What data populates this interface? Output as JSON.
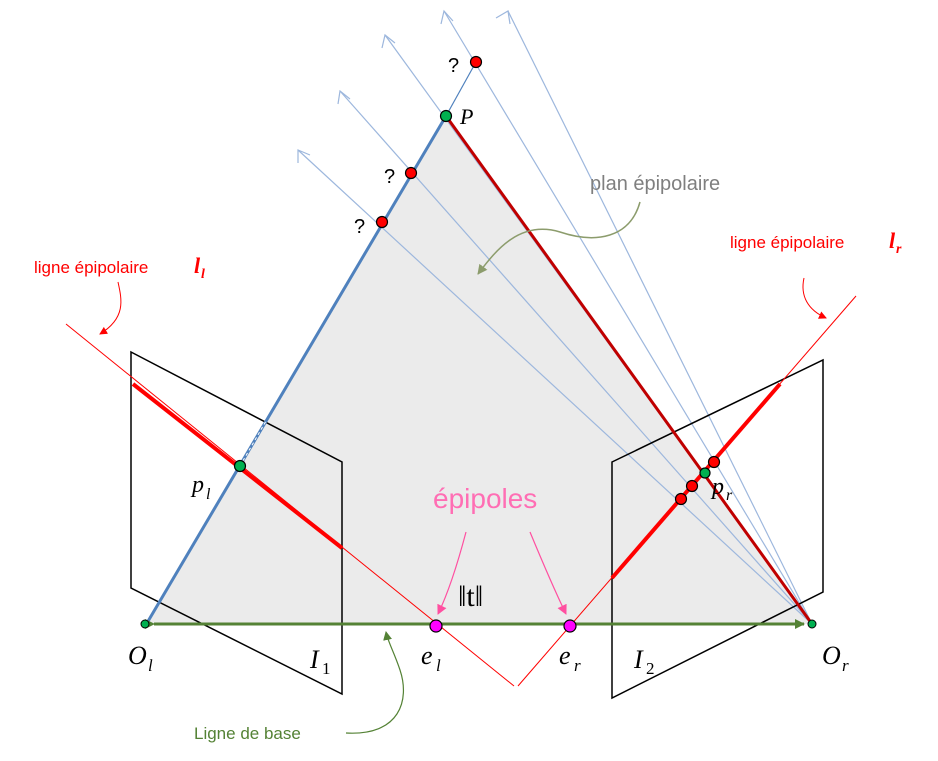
{
  "labels": {
    "P": "P",
    "q1": "?",
    "q2": "?",
    "q3": "?",
    "plan": "plan épipolaire",
    "ligne_l_text": "ligne épipolaire",
    "ligne_l_sym": "l",
    "ligne_l_sub": "l",
    "ligne_r_text": "ligne épipolaire",
    "ligne_r_sym": "l",
    "ligne_r_sub": "r",
    "pl": "p",
    "pl_sub": "l",
    "pr": "p",
    "pr_sub": "r",
    "epipoles": "épipoles",
    "t_norm": "‖t‖",
    "Ol": "O",
    "Ol_sub": "l",
    "Or": "O",
    "Or_sub": "r",
    "el": "e",
    "el_sub": "l",
    "er": "e",
    "er_sub": "r",
    "I1": "I",
    "I1_sub": "1",
    "I2": "I",
    "I2_sub": "2",
    "baseline": "Ligne de base"
  },
  "colors": {
    "plane_fill": "#ebebeb",
    "ray_blue": "#4f81bd",
    "ray_light": "#9db7dd",
    "epipolar_red": "#ff0000",
    "ray_darkred": "#c00000",
    "baseline_green": "#548235",
    "point_green": "#00b050",
    "point_red": "#ff0000",
    "epipole_magenta": "#ff00ff",
    "epipole_text": "#ff6eb4",
    "plan_text": "#7f7f7f",
    "plan_arrow": "#8c9c6c"
  }
}
